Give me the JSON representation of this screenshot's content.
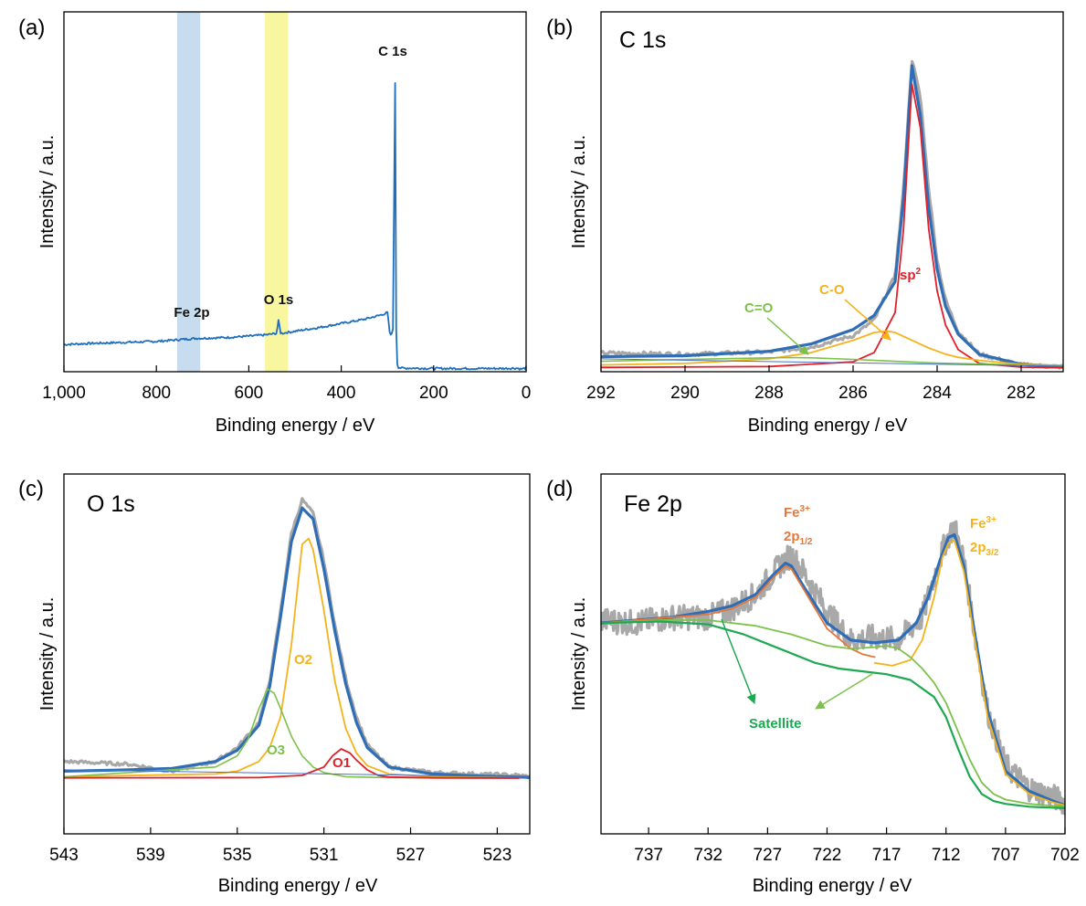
{
  "colors": {
    "raw": "#a8a8a8",
    "envelope": "#2f6db6",
    "survey": "#1f6fbf",
    "red": "#e0202a",
    "orange": "#f5b31b",
    "green": "#7cc24a",
    "baseline": "#4472c4",
    "satellite": "#1ea852",
    "fe12": "#e5773a",
    "band_fe": "#c7dcef",
    "band_o": "#f9f6a0"
  },
  "chart_data": [
    {
      "panel": "(a)",
      "type": "line",
      "title": "",
      "xlabel": "Binding energy / eV",
      "ylabel": "Intensity / a.u.",
      "xlim": [
        1000,
        0
      ],
      "ylim": [
        0,
        100
      ],
      "x_ticks": [
        1000,
        800,
        600,
        400,
        200,
        0
      ],
      "x_tick_labels": [
        "1,000",
        "800",
        "600",
        "400",
        "200",
        "0"
      ],
      "bands": [
        {
          "name": "Fe 2p",
          "from": 755,
          "to": 705
        },
        {
          "name": "O 1s",
          "from": 565,
          "to": 515
        }
      ],
      "series": [
        {
          "name": "survey",
          "x": [
            1000,
            950,
            900,
            850,
            800,
            750,
            720,
            710,
            700,
            650,
            600,
            560,
            540,
            535,
            532,
            528,
            520,
            500,
            450,
            400,
            350,
            320,
            310,
            300,
            295,
            292,
            288,
            286,
            284,
            283,
            282,
            281,
            279,
            277,
            270,
            250,
            200,
            150,
            100,
            50,
            20,
            10,
            0
          ],
          "y": [
            7.2,
            7.5,
            7.7,
            7.9,
            8.1,
            8.6,
            8.9,
            9.0,
            9.0,
            9.2,
            9.6,
            10.0,
            10.4,
            14.5,
            10.6,
            10.4,
            10.6,
            11.0,
            12.0,
            13.2,
            14.4,
            15.4,
            15.8,
            16.3,
            10.5,
            9.5,
            12.0,
            40.0,
            85.0,
            80.0,
            40.0,
            12.0,
            2.0,
            0.8,
            0.5,
            0.5,
            0.4,
            0.4,
            0.4,
            0.4,
            0.5,
            0.2,
            0.6
          ]
        }
      ],
      "annotations": [
        "C 1s",
        "O 1s",
        "Fe 2p"
      ]
    },
    {
      "panel": "(b)",
      "type": "line",
      "title": "C 1s",
      "xlabel": "Binding energy / eV",
      "ylabel": "Intensity / a.u.",
      "xlim": [
        292,
        281
      ],
      "ylim": [
        0,
        100
      ],
      "x_ticks": [
        292,
        290,
        288,
        286,
        284,
        282
      ],
      "series": [
        {
          "name": "raw",
          "style": "grey",
          "x": [
            292,
            290,
            288,
            287,
            286,
            285.5,
            285,
            284.8,
            284.6,
            284.4,
            284.2,
            284,
            283.8,
            283.5,
            283,
            282,
            281
          ],
          "y": [
            4.9,
            4.5,
            5.2,
            6.8,
            10.5,
            15.5,
            30.0,
            58.0,
            100.0,
            88.0,
            58.0,
            35.0,
            22.0,
            12.0,
            4.5,
            1.0,
            0.4
          ]
        },
        {
          "name": "envelope",
          "style": "blue",
          "x": [
            292,
            290,
            288,
            287,
            286,
            285.5,
            285,
            284.8,
            284.6,
            284.4,
            284.2,
            284,
            283.8,
            283.5,
            283,
            282,
            281
          ],
          "y": [
            3.7,
            4.0,
            5.4,
            7.8,
            12.5,
            17.0,
            28.0,
            55.0,
            98.0,
            82.0,
            52.0,
            32.0,
            20.0,
            11.0,
            4.5,
            1.2,
            0.5
          ]
        },
        {
          "name": "sp2",
          "style": "red",
          "x": [
            292,
            288,
            286,
            285.5,
            285,
            284.8,
            284.6,
            284.4,
            284.2,
            284,
            283.8,
            283.5,
            283,
            282,
            281
          ],
          "y": [
            0.2,
            0.5,
            2.0,
            5.0,
            18.0,
            45.0,
            92.0,
            78.0,
            45.0,
            25.0,
            14.0,
            6.0,
            1.5,
            0.3,
            0.1
          ]
        },
        {
          "name": "C-O",
          "style": "orange",
          "x": [
            292,
            290,
            288,
            287,
            286,
            285.5,
            285.2,
            285,
            284.6,
            284.2,
            283.8,
            283.5,
            283,
            282,
            281
          ],
          "y": [
            1.0,
            1.5,
            3.0,
            5.0,
            9.0,
            11.5,
            12.0,
            11.5,
            9.0,
            6.5,
            4.5,
            3.5,
            2.5,
            1.2,
            0.8
          ]
        },
        {
          "name": "C=O",
          "style": "green",
          "x": [
            292,
            290,
            288,
            287.5,
            287,
            286,
            285,
            284,
            283,
            282,
            281
          ],
          "y": [
            2.2,
            2.8,
            3.3,
            3.4,
            3.3,
            2.8,
            2.2,
            1.6,
            1.3,
            1.0,
            0.8
          ]
        },
        {
          "name": "baseline",
          "style": "thin",
          "x": [
            292,
            281
          ],
          "y": [
            3.0,
            0.6
          ]
        }
      ],
      "annotations": [
        "sp2",
        "C-O",
        "C=O"
      ]
    },
    {
      "panel": "(c)",
      "type": "line",
      "title": "O 1s",
      "xlabel": "Binding energy / eV",
      "ylabel": "Intensity / a.u.",
      "xlim": [
        543,
        521.5
      ],
      "ylim": [
        0,
        100
      ],
      "x_ticks": [
        543,
        539,
        535,
        531,
        527,
        523
      ],
      "series": [
        {
          "name": "raw",
          "style": "grey",
          "x": [
            543,
            540,
            538,
            536,
            535,
            534,
            533.5,
            533,
            532.5,
            532,
            531.5,
            531,
            530.5,
            530,
            529.5,
            529,
            528,
            526,
            524,
            522,
            521.5
          ],
          "y": [
            6.0,
            5.0,
            2.5,
            6.0,
            11.0,
            20.0,
            35.0,
            60.0,
            88.0,
            100.0,
            95.0,
            78.0,
            55.0,
            36.0,
            22.0,
            12.0,
            4.0,
            2.0,
            1.5,
            1.0,
            0.5
          ]
        },
        {
          "name": "envelope",
          "style": "blue",
          "x": [
            543,
            540,
            538,
            536,
            535,
            534,
            533.5,
            533,
            532.5,
            532,
            531.5,
            531,
            530.5,
            530,
            529.5,
            529,
            528,
            526,
            524,
            522,
            521.5
          ],
          "y": [
            2.5,
            3.0,
            3.5,
            6.0,
            10.0,
            19.0,
            33.0,
            58.0,
            85.0,
            97.0,
            93.0,
            75.0,
            53.0,
            34.0,
            20.0,
            11.0,
            4.0,
            1.5,
            0.8,
            0.4,
            0.3
          ]
        },
        {
          "name": "O2",
          "style": "orange",
          "x": [
            543,
            536,
            535,
            534,
            533.5,
            533,
            532.5,
            532,
            531.7,
            531.5,
            531,
            530.5,
            530,
            529.5,
            529,
            528,
            526,
            522
          ],
          "y": [
            0.5,
            1.5,
            2.5,
            6.0,
            11.0,
            22.0,
            48.0,
            84.0,
            86.0,
            82.0,
            60.0,
            35.0,
            18.0,
            9.0,
            4.5,
            1.5,
            0.5,
            0.1
          ]
        },
        {
          "name": "O3",
          "style": "green",
          "x": [
            543,
            536,
            535,
            534.5,
            534,
            533.6,
            533.3,
            533,
            532.5,
            532,
            531.5,
            531,
            530,
            528,
            524
          ],
          "y": [
            0.5,
            4.0,
            8.0,
            14.0,
            25.0,
            32.0,
            30.5,
            25.0,
            15.0,
            8.0,
            4.0,
            2.0,
            0.5,
            0.2,
            0.1
          ]
        },
        {
          "name": "O1",
          "style": "red",
          "x": [
            543,
            534,
            532,
            531,
            530.6,
            530.2,
            529.8,
            529.5,
            529,
            528.5,
            528,
            526,
            522
          ],
          "y": [
            0.1,
            0.2,
            1.0,
            4.0,
            8.0,
            10.5,
            9.0,
            6.5,
            3.0,
            1.0,
            0.4,
            0.1,
            0.0
          ]
        },
        {
          "name": "baseline",
          "style": "thin",
          "x": [
            543,
            521.5
          ],
          "y": [
            3.0,
            0.4
          ]
        }
      ],
      "annotations": [
        "O1",
        "O2",
        "O3"
      ]
    },
    {
      "panel": "(d)",
      "type": "line",
      "title": "Fe 2p",
      "xlabel": "Binding energy / eV",
      "ylabel": "Intensity / a.u.",
      "xlim": [
        741,
        702
      ],
      "ylim": [
        0,
        100
      ],
      "x_ticks": [
        737,
        732,
        727,
        722,
        717,
        712,
        707,
        702
      ],
      "series": [
        {
          "name": "raw",
          "style": "grey",
          "x": [
            741,
            738,
            735,
            732,
            730,
            728,
            726,
            725,
            724,
            722,
            720,
            718,
            716,
            714,
            713,
            712,
            711.3,
            710.5,
            709.5,
            708.5,
            707,
            705,
            703,
            702
          ],
          "y": [
            67.0,
            66.0,
            68.0,
            68.0,
            71.0,
            76.0,
            86.0,
            90.0,
            84.0,
            70.0,
            60.0,
            61.0,
            60.0,
            68.0,
            82.0,
            95.0,
            100.0,
            88.0,
            60.0,
            35.0,
            16.0,
            8.0,
            5.0,
            3.0
          ]
        },
        {
          "name": "envelope",
          "style": "blue",
          "x": [
            741,
            738,
            735,
            732,
            730,
            728,
            726.5,
            725.5,
            725,
            724,
            722,
            720,
            718,
            716,
            714.5,
            713.5,
            712.5,
            711.8,
            711.3,
            710.5,
            709.5,
            708.5,
            707,
            705,
            703,
            702
          ],
          "y": [
            66.0,
            67.0,
            68.0,
            70.0,
            72.0,
            76.0,
            83.0,
            87.0,
            86.0,
            79.0,
            66.0,
            60.0,
            59.0,
            60.0,
            66.0,
            75.0,
            88.0,
            96.0,
            97.0,
            86.0,
            60.0,
            35.0,
            14.0,
            7.0,
            3.5,
            2.0
          ]
        },
        {
          "name": "Fe3+ 2p1/2",
          "style": "fe12",
          "x": [
            741,
            738,
            735,
            732,
            730,
            728,
            726.5,
            725.5,
            725,
            724,
            722,
            720,
            719,
            718
          ],
          "y": [
            66.0,
            67.0,
            68.0,
            69.0,
            71.0,
            75.0,
            82.0,
            86.0,
            85.0,
            78.0,
            64.0,
            57.0,
            55.0,
            54.0
          ]
        },
        {
          "name": "Fe3+ 2p3/2",
          "style": "orange",
          "x": [
            718,
            716.5,
            715,
            714,
            713,
            712.3,
            711.8,
            711.3,
            710.5,
            709.5,
            708.5,
            707,
            705,
            703,
            702
          ],
          "y": [
            52.0,
            51.0,
            53.0,
            60.0,
            75.0,
            89.0,
            94.0,
            95.0,
            84.0,
            58.0,
            33.0,
            13.0,
            6.0,
            3.0,
            2.0
          ]
        },
        {
          "name": "Satellite",
          "style": "lightgreen",
          "x": [
            741,
            736,
            732,
            728,
            725,
            722,
            720,
            718,
            717,
            716,
            715,
            714,
            713,
            712,
            711,
            710,
            709,
            708,
            707,
            705,
            702
          ],
          "y": [
            66.0,
            67.0,
            67.0,
            65.0,
            62.0,
            58.0,
            57.0,
            57.5,
            58.0,
            57.0,
            54.0,
            50.0,
            45.0,
            38.0,
            28.0,
            18.0,
            10.0,
            6.0,
            4.0,
            2.5,
            1.5
          ]
        },
        {
          "name": "background",
          "style": "satellite",
          "x": [
            741,
            736,
            732,
            729,
            726,
            723,
            721,
            719,
            717,
            715,
            713,
            712,
            711,
            710,
            709,
            708,
            707,
            705,
            702
          ],
          "y": [
            66.0,
            66.5,
            65.5,
            62.0,
            57.0,
            52.0,
            50.0,
            49.0,
            48.0,
            46.0,
            40.0,
            33.0,
            22.0,
            12.0,
            6.0,
            3.5,
            2.5,
            1.5,
            1.0
          ]
        }
      ],
      "annotations": [
        "Fe3+ 2p1/2",
        "Fe3+ 2p3/2",
        "Satellite"
      ]
    }
  ],
  "labels": {
    "a": {
      "panel": "(a)",
      "c1s": "C 1s",
      "o1s": "O 1s",
      "fe2p": "Fe 2p"
    },
    "b": {
      "panel": "(b)",
      "title": "C 1s",
      "sp": "sp",
      "sp_sup": "2",
      "co": "C-O",
      "cdo": "C=O"
    },
    "c": {
      "panel": "(c)",
      "title": "O 1s",
      "o1": "O1",
      "o2": "O2",
      "o3": "O3"
    },
    "d": {
      "panel": "(d)",
      "title": "Fe 2p",
      "fe": "Fe",
      "fe_sup": "3+",
      "p12_base": "2p",
      "p12_sub": "1/2",
      "p32_base": "2p",
      "p32_sub": "3/2",
      "satellite": "Satellite"
    }
  }
}
